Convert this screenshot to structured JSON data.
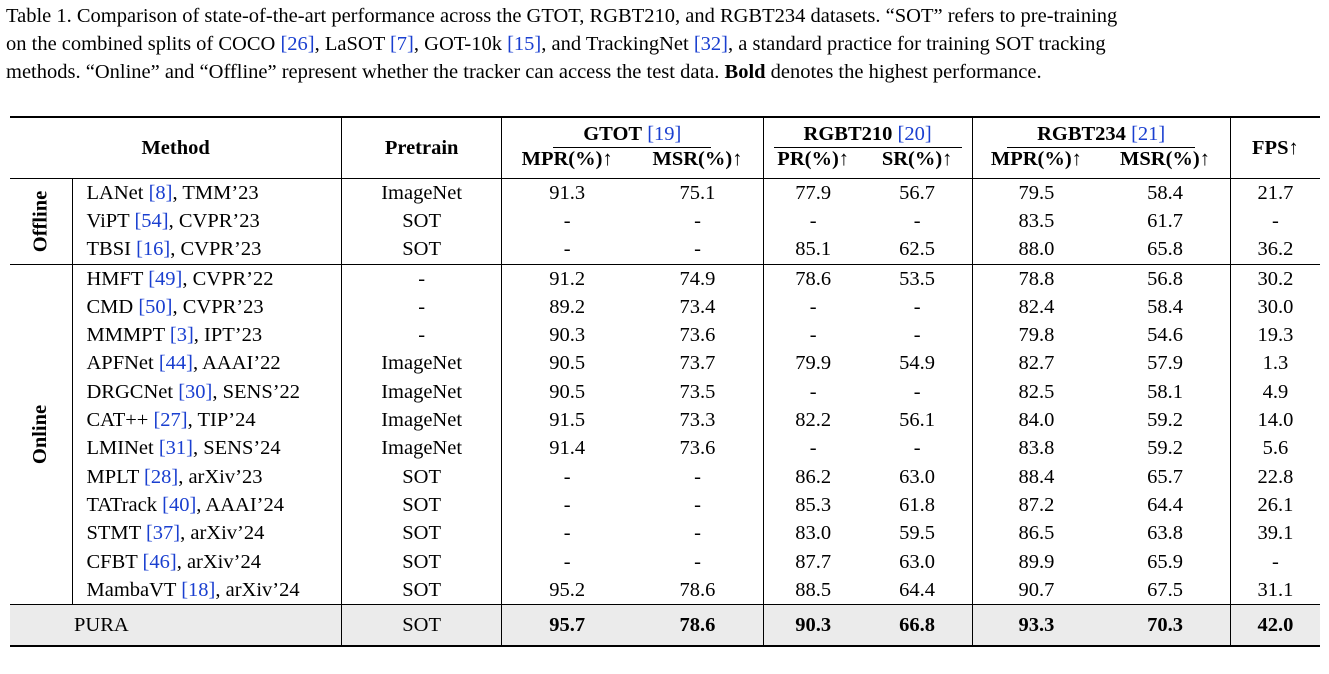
{
  "caption": {
    "line1_pre": "Table 1. Comparison of state-of-the-art performance across the GTOT, RGBT210, and RGBT234 datasets. “SOT” refers to pre-training",
    "line2_a": "on the combined splits of COCO ",
    "cite_coco": "[26]",
    "line2_b": ", LaSOT ",
    "cite_lasot": "[7]",
    "line2_c": ", GOT-10k ",
    "cite_got": "[15]",
    "line2_d": ", and TrackingNet ",
    "cite_tn": "[32]",
    "line2_e": ", a standard practice for training SOT tracking",
    "line3_a": "methods. “Online” and “Offline” represent whether the tracker can access the test data. ",
    "line3_bold": "Bold",
    "line3_b": " denotes the highest performance."
  },
  "header": {
    "method": "Method",
    "pretrain": "Pretrain",
    "gtot": "GTOT",
    "gtot_cite": "[19]",
    "rgbt210": "RGBT210",
    "rgbt210_cite": "[20]",
    "rgbt234": "RGBT234",
    "rgbt234_cite": "[21]",
    "fps": "FPS↑",
    "sub": [
      "MPR(%)↑",
      "MSR(%)↑",
      "PR(%)↑",
      "SR(%)↑",
      "MPR(%)↑",
      "MSR(%)↑"
    ]
  },
  "groups": {
    "offline": "Offline",
    "online": "Online"
  },
  "offline_rows": [
    {
      "name": "LANet ",
      "cite": "[8]",
      "venue": ", TMM’23",
      "pretrain": "ImageNet",
      "v": [
        "91.3",
        "75.1",
        "77.9",
        "56.7",
        "79.5",
        "58.4",
        "21.7"
      ]
    },
    {
      "name": "ViPT ",
      "cite": "[54]",
      "venue": ", CVPR’23",
      "pretrain": "SOT",
      "v": [
        "-",
        "-",
        "-",
        "-",
        "83.5",
        "61.7",
        "-"
      ]
    },
    {
      "name": "TBSI ",
      "cite": "[16]",
      "venue": ", CVPR’23",
      "pretrain": "SOT",
      "v": [
        "-",
        "-",
        "85.1",
        "62.5",
        "88.0",
        "65.8",
        "36.2"
      ]
    }
  ],
  "online_rows": [
    {
      "name": "HMFT ",
      "cite": "[49]",
      "venue": ", CVPR’22",
      "pretrain": "-",
      "v": [
        "91.2",
        "74.9",
        "78.6",
        "53.5",
        "78.8",
        "56.8",
        "30.2"
      ]
    },
    {
      "name": "CMD ",
      "cite": "[50]",
      "venue": ", CVPR’23",
      "pretrain": "-",
      "v": [
        "89.2",
        "73.4",
        "-",
        "-",
        "82.4",
        "58.4",
        "30.0"
      ]
    },
    {
      "name": "MMMPT ",
      "cite": "[3]",
      "venue": ", IPT’23",
      "pretrain": "-",
      "v": [
        "90.3",
        "73.6",
        "-",
        "-",
        "79.8",
        "54.6",
        "19.3"
      ]
    },
    {
      "name": "APFNet ",
      "cite": "[44]",
      "venue": ", AAAI’22",
      "pretrain": "ImageNet",
      "v": [
        "90.5",
        "73.7",
        "79.9",
        "54.9",
        "82.7",
        "57.9",
        "1.3"
      ]
    },
    {
      "name": "DRGCNet ",
      "cite": "[30]",
      "venue": ", SENS’22",
      "pretrain": "ImageNet",
      "v": [
        "90.5",
        "73.5",
        "-",
        "-",
        "82.5",
        "58.1",
        "4.9"
      ]
    },
    {
      "name": "CAT++ ",
      "cite": "[27]",
      "venue": ", TIP’24",
      "pretrain": "ImageNet",
      "v": [
        "91.5",
        "73.3",
        "82.2",
        "56.1",
        "84.0",
        "59.2",
        "14.0"
      ]
    },
    {
      "name": "LMINet ",
      "cite": "[31]",
      "venue": ", SENS’24",
      "pretrain": "ImageNet",
      "v": [
        "91.4",
        "73.6",
        "-",
        "-",
        "83.8",
        "59.2",
        "5.6"
      ]
    },
    {
      "name": "MPLT ",
      "cite": "[28]",
      "venue": ", arXiv’23",
      "pretrain": "SOT",
      "v": [
        "-",
        "-",
        "86.2",
        "63.0",
        "88.4",
        "65.7",
        "22.8"
      ]
    },
    {
      "name": "TATrack ",
      "cite": "[40]",
      "venue": ", AAAI’24",
      "pretrain": "SOT",
      "v": [
        "-",
        "-",
        "85.3",
        "61.8",
        "87.2",
        "64.4",
        "26.1"
      ]
    },
    {
      "name": "STMT ",
      "cite": "[37]",
      "venue": ", arXiv’24",
      "pretrain": "SOT",
      "v": [
        "-",
        "-",
        "83.0",
        "59.5",
        "86.5",
        "63.8",
        "39.1"
      ]
    },
    {
      "name": "CFBT ",
      "cite": "[46]",
      "venue": ", arXiv’24",
      "pretrain": "SOT",
      "v": [
        "-",
        "-",
        "87.7",
        "63.0",
        "89.9",
        "65.9",
        "-"
      ]
    },
    {
      "name": "MambaVT ",
      "cite": "[18]",
      "venue": ", arXiv’24",
      "pretrain": "SOT",
      "v": [
        "95.2",
        "78.6",
        "88.5",
        "64.4",
        "90.7",
        "67.5",
        "31.1"
      ]
    }
  ],
  "best_row": {
    "name": "PURA",
    "pretrain": "SOT",
    "v": [
      "95.7",
      "78.6",
      "90.3",
      "66.8",
      "93.3",
      "70.3",
      "42.0"
    ]
  }
}
